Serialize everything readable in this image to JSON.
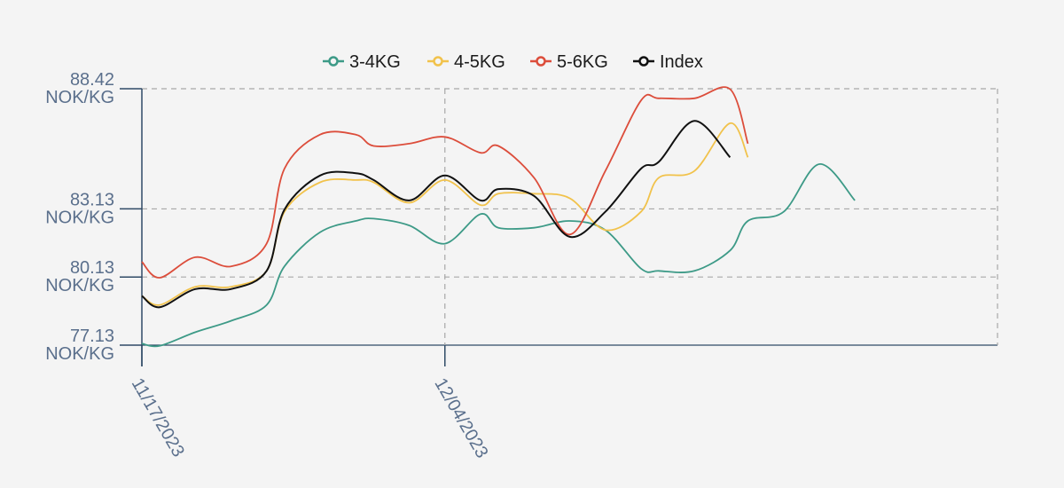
{
  "chart_data": {
    "type": "line",
    "title": "",
    "xlabel": "",
    "ylabel": "",
    "y_unit": "NOK/KG",
    "ylim": [
      77.13,
      88.42
    ],
    "yticks": [
      77.13,
      80.13,
      83.13,
      88.42
    ],
    "ytick_labels": [
      [
        "77.13",
        "NOK/KG"
      ],
      [
        "80.13",
        "NOK/KG"
      ],
      [
        "83.13",
        "NOK/KG"
      ],
      [
        "88.42",
        "NOK/KG"
      ]
    ],
    "x_start": "2023-11-17",
    "x_end": "2024-01-04",
    "xticks": [
      "2023-11-17",
      "2023-12-04"
    ],
    "xtick_labels": [
      "11/17/2023",
      "12/04/2023"
    ],
    "grid": true,
    "legend_position": "top",
    "x": [
      "2023-11-17",
      "2023-11-18",
      "2023-11-20",
      "2023-11-22",
      "2023-11-24",
      "2023-11-25",
      "2023-11-27",
      "2023-11-29",
      "2023-11-30",
      "2023-12-02",
      "2023-12-04",
      "2023-12-06",
      "2023-12-07",
      "2023-12-09",
      "2023-12-11",
      "2023-12-13",
      "2023-12-15",
      "2023-12-16",
      "2023-12-18",
      "2023-12-20",
      "2023-12-21",
      "2023-12-23",
      "2023-12-25",
      "2023-12-27",
      "2023-12-28",
      "2023-12-30",
      "2024-01-01",
      "2024-01-03",
      "2024-01-04"
    ],
    "series": [
      {
        "name": "3-4KG",
        "color": "#3d9a87",
        "values": [
          77.2,
          77.1,
          77.7,
          78.2,
          78.9,
          80.6,
          82.1,
          82.6,
          82.7,
          82.4,
          81.6,
          82.9,
          82.3,
          82.3,
          82.6,
          82.2,
          80.5,
          80.4,
          80.4,
          81.3,
          82.6,
          83.0,
          85.1,
          83.5,
          null,
          null,
          null,
          null,
          null
        ]
      },
      {
        "name": "4-5KG",
        "color": "#f1c24b",
        "values": [
          79.3,
          78.9,
          79.7,
          79.7,
          80.4,
          83.0,
          84.3,
          84.4,
          84.3,
          83.4,
          84.4,
          83.3,
          83.8,
          83.8,
          83.6,
          82.2,
          83.0,
          84.5,
          84.8,
          86.9,
          85.4,
          null,
          null,
          null,
          null,
          null,
          null,
          null,
          null
        ]
      },
      {
        "name": "5-6KG",
        "color": "#dc4d3b",
        "values": [
          80.8,
          80.1,
          81.0,
          80.6,
          81.6,
          84.9,
          86.4,
          86.4,
          85.9,
          86.0,
          86.3,
          85.6,
          85.9,
          84.5,
          82.0,
          84.8,
          87.9,
          88.0,
          88.0,
          88.4,
          86.0,
          null,
          null,
          null,
          null,
          null,
          null,
          null,
          null
        ]
      },
      {
        "name": "Index",
        "color": "#111111",
        "values": [
          79.3,
          78.8,
          79.6,
          79.6,
          80.4,
          83.1,
          84.6,
          84.7,
          84.4,
          83.5,
          84.6,
          83.5,
          84.0,
          83.7,
          81.9,
          83.0,
          84.9,
          85.2,
          87.0,
          85.4,
          null,
          null,
          null,
          null,
          null,
          null,
          null,
          null,
          null
        ]
      }
    ]
  }
}
